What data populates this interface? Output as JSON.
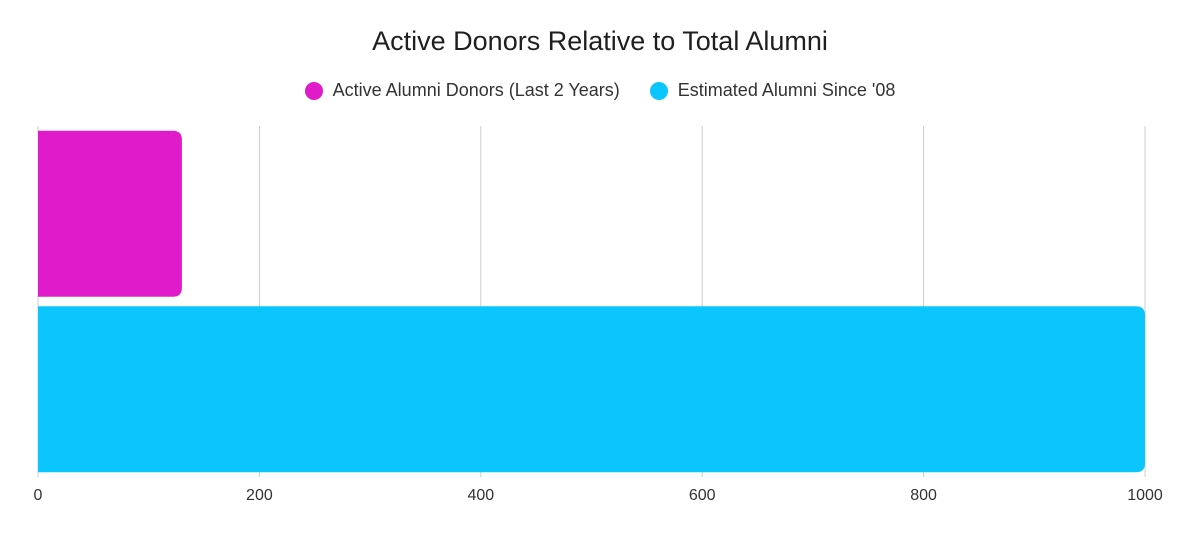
{
  "chart_data": {
    "type": "bar",
    "orientation": "horizontal",
    "title": "Active Donors Relative to Total Alumni",
    "xlabel": "",
    "ylabel": "",
    "xlim": [
      0,
      1000
    ],
    "ticks": [
      0,
      200,
      400,
      600,
      800,
      1000
    ],
    "grid": true,
    "legend_position": "top-center",
    "series": [
      {
        "name": "Active Alumni Donors (Last 2 Years)",
        "value": 130,
        "color": "#E01BC9"
      },
      {
        "name": "Estimated Alumni Since '08",
        "value": 1000,
        "color": "#0BC6FC"
      }
    ]
  }
}
